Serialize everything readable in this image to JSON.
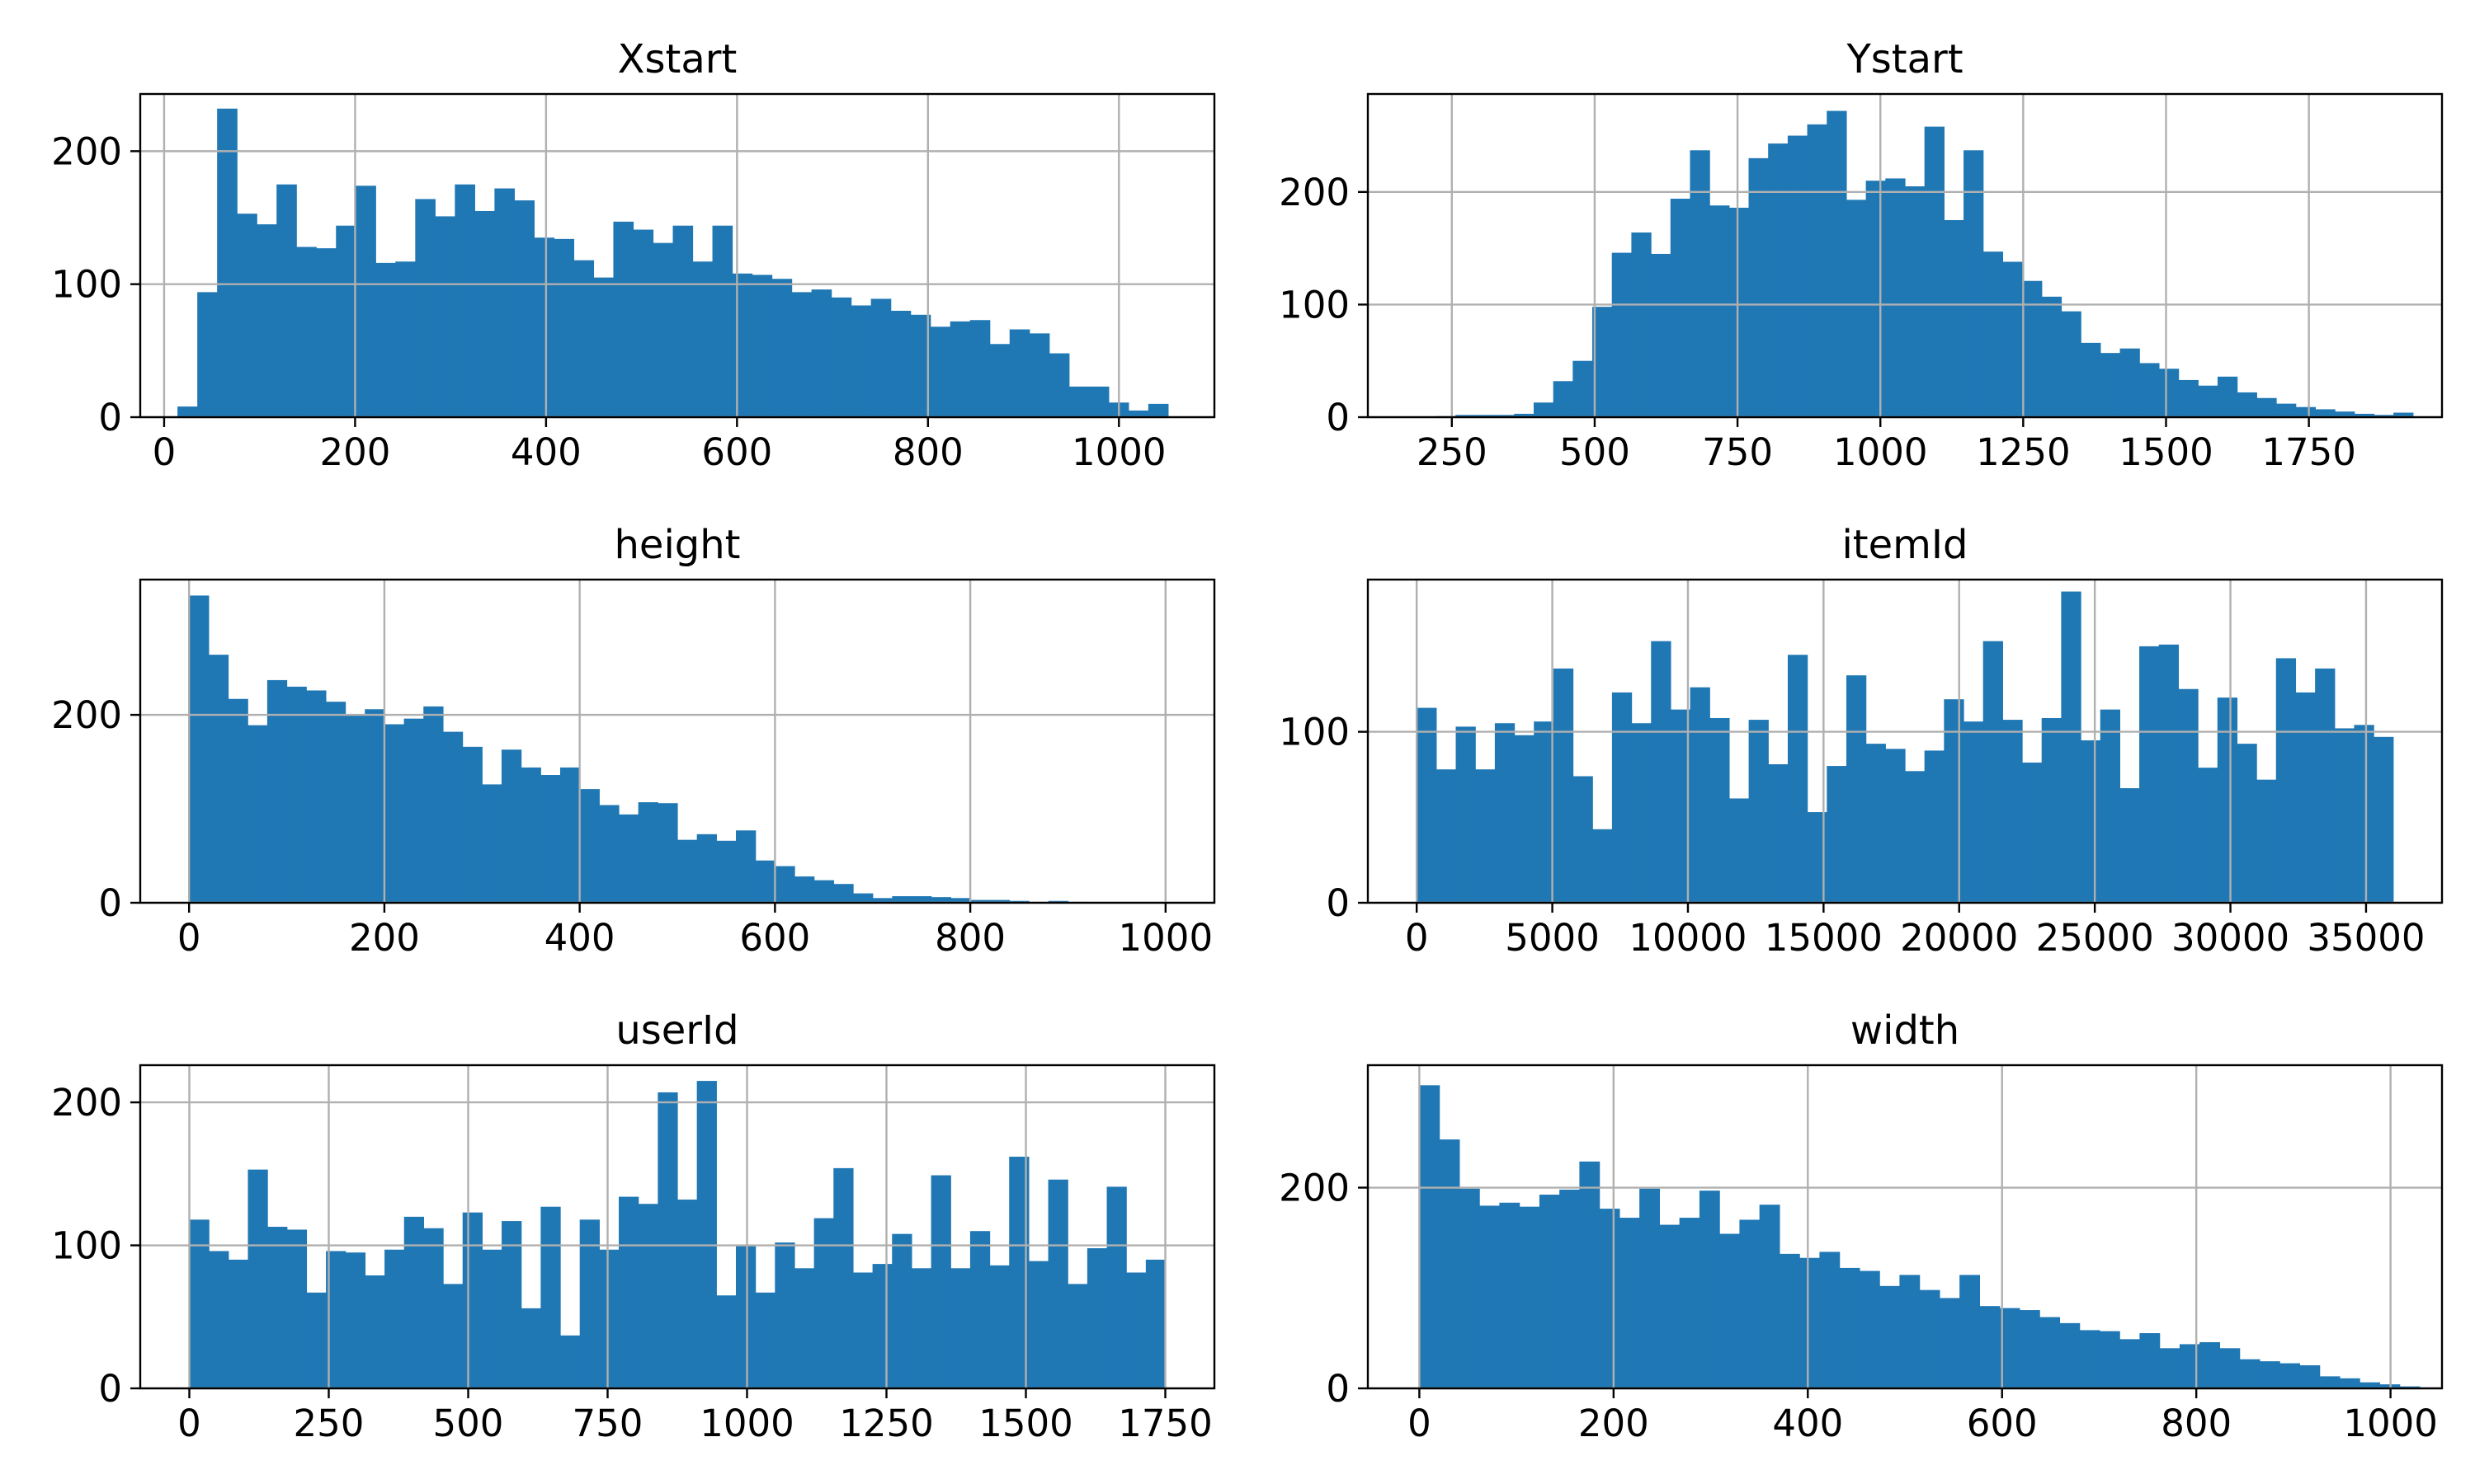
{
  "colors": {
    "bar": "#1f77b4",
    "grid": "#b0b0b0",
    "axis": "#000000",
    "background": "#ffffff"
  },
  "chart_data": [
    {
      "type": "bar",
      "title": "Xstart",
      "xlabel": "",
      "ylabel": "",
      "xlim": [
        -25,
        1100
      ],
      "ylim": [
        0,
        243
      ],
      "grid": true,
      "legend": "none",
      "xticks": [
        0,
        200,
        400,
        600,
        800,
        1000
      ],
      "yticks": [
        0,
        100,
        200
      ],
      "bin_start": 14,
      "bin_width": 20.75,
      "values": [
        8,
        94,
        232,
        153,
        145,
        175,
        128,
        127,
        144,
        174,
        116,
        117,
        164,
        151,
        175,
        155,
        172,
        163,
        135,
        134,
        118,
        105,
        147,
        141,
        131,
        144,
        117,
        144,
        108,
        107,
        104,
        94,
        96,
        90,
        84,
        89,
        80,
        77,
        68,
        72,
        73,
        55,
        66,
        63,
        48,
        23,
        23,
        11,
        5,
        10
      ]
    },
    {
      "type": "bar",
      "title": "Ystart",
      "xlabel": "",
      "ylabel": "",
      "xlim": [
        103,
        1983
      ],
      "ylim": [
        0,
        287
      ],
      "grid": true,
      "legend": "none",
      "xticks": [
        250,
        500,
        750,
        1000,
        1250,
        1500,
        1750
      ],
      "yticks": [
        0,
        100,
        200
      ],
      "bin_start": 188,
      "bin_width": 34.2,
      "values": [
        0,
        1,
        2,
        2,
        2,
        3,
        13,
        32,
        50,
        98,
        146,
        164,
        145,
        194,
        237,
        188,
        186,
        230,
        243,
        250,
        260,
        272,
        193,
        210,
        212,
        205,
        258,
        175,
        237,
        147,
        138,
        121,
        107,
        94,
        66,
        57,
        61,
        48,
        43,
        33,
        28,
        36,
        22,
        17,
        12,
        9,
        7,
        5,
        3,
        2,
        4
      ]
    },
    {
      "type": "bar",
      "title": "height",
      "xlabel": "",
      "ylabel": "",
      "xlim": [
        -50,
        1050
      ],
      "ylim": [
        0,
        344
      ],
      "grid": true,
      "legend": "none",
      "xticks": [
        0,
        200,
        400,
        600,
        800,
        1000
      ],
      "yticks": [
        0,
        200
      ],
      "bin_start": 0,
      "bin_width": 20,
      "values": [
        327,
        264,
        217,
        189,
        237,
        230,
        226,
        214,
        200,
        206,
        190,
        196,
        209,
        182,
        166,
        126,
        163,
        144,
        136,
        144,
        121,
        104,
        94,
        107,
        106,
        67,
        73,
        66,
        77,
        45,
        39,
        28,
        24,
        20,
        10,
        5,
        7,
        7,
        6,
        5,
        3,
        3,
        2,
        1,
        2,
        1,
        0,
        0,
        0,
        0
      ]
    },
    {
      "type": "bar",
      "title": "itemId",
      "xlabel": "",
      "ylabel": "",
      "xlim": [
        -1800,
        37800
      ],
      "ylim": [
        0,
        189
      ],
      "grid": true,
      "legend": "none",
      "xticks": [
        0,
        5000,
        10000,
        15000,
        20000,
        25000,
        30000,
        35000
      ],
      "yticks": [
        0,
        100
      ],
      "bin_start": 0,
      "bin_width": 720,
      "values": [
        114,
        78,
        103,
        78,
        105,
        98,
        106,
        137,
        74,
        43,
        123,
        105,
        153,
        113,
        126,
        108,
        61,
        107,
        81,
        145,
        53,
        80,
        133,
        93,
        90,
        77,
        89,
        119,
        106,
        153,
        107,
        82,
        108,
        182,
        95,
        113,
        67,
        150,
        151,
        125,
        79,
        120,
        93,
        72,
        143,
        123,
        137,
        102,
        104,
        97
      ]
    },
    {
      "type": "bar",
      "title": "userId",
      "xlabel": "",
      "ylabel": "",
      "xlim": [
        -88,
        1838
      ],
      "ylim": [
        0,
        226
      ],
      "grid": true,
      "legend": "none",
      "xticks": [
        0,
        250,
        500,
        750,
        1000,
        1250,
        1500,
        1750
      ],
      "yticks": [
        0,
        100,
        200
      ],
      "bin_start": 0,
      "bin_width": 35,
      "values": [
        118,
        96,
        90,
        153,
        113,
        111,
        67,
        96,
        95,
        79,
        97,
        120,
        112,
        73,
        123,
        97,
        117,
        56,
        127,
        37,
        118,
        97,
        134,
        129,
        207,
        132,
        215,
        65,
        100,
        67,
        102,
        84,
        119,
        154,
        81,
        87,
        108,
        84,
        149,
        84,
        110,
        86,
        162,
        89,
        146,
        73,
        98,
        141,
        81,
        90
      ]
    },
    {
      "type": "bar",
      "title": "width",
      "xlabel": "",
      "ylabel": "",
      "xlim": [
        -53,
        1053
      ],
      "ylim": [
        0,
        322
      ],
      "grid": true,
      "legend": "none",
      "xticks": [
        0,
        200,
        400,
        600,
        800,
        1000
      ],
      "yticks": [
        0,
        200
      ],
      "bin_start": 0,
      "bin_width": 20.6,
      "values": [
        302,
        248,
        199,
        182,
        185,
        181,
        193,
        198,
        226,
        179,
        170,
        199,
        163,
        170,
        197,
        154,
        168,
        183,
        134,
        130,
        136,
        120,
        117,
        102,
        113,
        98,
        90,
        113,
        82,
        80,
        78,
        71,
        65,
        58,
        57,
        49,
        55,
        40,
        44,
        46,
        40,
        29,
        27,
        25,
        23,
        12,
        10,
        6,
        4,
        2,
        1
      ]
    }
  ]
}
